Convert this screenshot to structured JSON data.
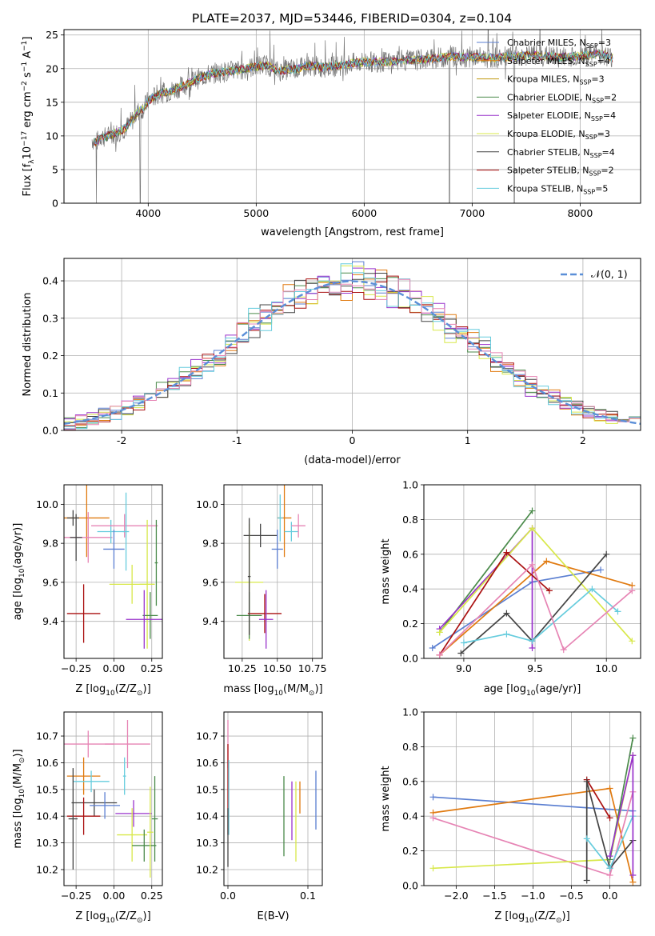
{
  "figure": {
    "title": "PLATE=2037, MJD=53446, FIBERID=0304, z=0.104"
  },
  "chart_data": [
    {
      "id": "spectrum",
      "type": "line",
      "xlabel": "wavelength [Angstrom, rest frame]",
      "ylabel_main": "Flux [f",
      "ylabel_sub1": "λ",
      "ylabel_mid": "10",
      "ylabel_sup1": "−17",
      "ylabel_mid2": " erg cm",
      "ylabel_sup2": "−2",
      "ylabel_mid3": " s",
      "ylabel_sup3": "−1",
      "ylabel_mid4": " A",
      "ylabel_sup4": "−1",
      "ylabel_end": "]",
      "xlim": [
        3220,
        8560
      ],
      "ylim": [
        0,
        25.8
      ],
      "xticks": [
        4000,
        5000,
        6000,
        7000,
        8000
      ],
      "yticks": [
        0,
        5,
        10,
        15,
        20,
        25
      ],
      "legend_position": "top-right",
      "data_range": [
        3480,
        8300
      ],
      "anchors": {
        "x": [
          3480,
          3520,
          3560,
          3600,
          3680,
          3750,
          3800,
          3860,
          3900,
          3960,
          4000,
          4100,
          4200,
          4300,
          4400,
          4500,
          4600,
          4700,
          4800,
          4900,
          5000,
          5100,
          5200,
          5300,
          5400,
          5500,
          5600,
          5700,
          5800,
          5900,
          6000,
          6200,
          6400,
          6600,
          6800,
          7000,
          7200,
          7400,
          7600,
          7800,
          8000,
          8200,
          8300
        ],
        "y": [
          9.5,
          9.0,
          10.0,
          9.8,
          10.3,
          10.8,
          11.3,
          12.5,
          13.5,
          14.2,
          15.2,
          16.3,
          16.6,
          17.3,
          18.0,
          18.8,
          19.3,
          19.5,
          19.7,
          20.0,
          20.3,
          20.6,
          19.6,
          19.9,
          20.0,
          20.5,
          20.2,
          20.3,
          20.5,
          20.8,
          21.0,
          21.0,
          21.2,
          21.4,
          21.8,
          21.7,
          21.6,
          21.8,
          22.0,
          21.7,
          21.9,
          22.2,
          21.6
        ]
      },
      "series": [
        {
          "name": "Chabrier MILES, N",
          "sub": "SSP",
          "eq": "=3",
          "color": "#5b7fd1"
        },
        {
          "name": "Salpeter MILES, N",
          "sub": "SSP",
          "eq": "=4",
          "color": "#e07a10"
        },
        {
          "name": "Kroupa MILES, N",
          "sub": "SSP",
          "eq": "=3",
          "color": "#c09a10"
        },
        {
          "name": "Chabrier ELODIE, N",
          "sub": "SSP",
          "eq": "=2",
          "color": "#4a8a4a"
        },
        {
          "name": "Salpeter ELODIE, N",
          "sub": "SSP",
          "eq": "=4",
          "color": "#9933cc"
        },
        {
          "name": "Kroupa ELODIE, N",
          "sub": "SSP",
          "eq": "=3",
          "color": "#d8e84a"
        },
        {
          "name": "Chabrier STELIB, N",
          "sub": "SSP",
          "eq": "=4",
          "color": "#444444"
        },
        {
          "name": "Salpeter STELIB, N",
          "sub": "SSP",
          "eq": "=2",
          "color": "#aa1111"
        },
        {
          "name": "Kroupa STELIB, N",
          "sub": "SSP",
          "eq": "=5",
          "color": "#66ccdd"
        }
      ],
      "observed": {
        "color": "#777777"
      },
      "drops": [
        3520,
        3925,
        6790,
        7390
      ]
    },
    {
      "id": "residuals",
      "type": "histogram",
      "xlabel": "(data-model)/error",
      "ylabel": "Normed distribution",
      "xlim": [
        -2.5,
        2.5
      ],
      "ylim": [
        0,
        0.46
      ],
      "xticks": [
        -2,
        -1,
        0,
        1,
        2
      ],
      "yticks": [
        0,
        0.1,
        0.2,
        0.3,
        0.4
      ],
      "bin_width": 0.1,
      "legend_position": "top-right",
      "reference_curve": {
        "label": "𝒩(0, 1)",
        "mean": 0,
        "sigma": 1,
        "color": "#5b8fd8"
      },
      "series_colors": [
        "#5b7fd1",
        "#e07a10",
        "#4a8a4a",
        "#9933cc",
        "#d8e84a",
        "#444444",
        "#aa1111",
        "#66ccdd",
        "#e684b4"
      ]
    },
    {
      "id": "age-vs-Z",
      "type": "errorbar",
      "xlabel_main": "Z [log",
      "xlabel_sub": "10",
      "xlabel_rest": "(Z/Z",
      "xlabel_sub2": "⊙",
      "xlabel_end": ")]",
      "ylabel_main": "age  [log",
      "ylabel_sub": "10",
      "ylabel_rest": "(age/yr)]",
      "xlim": [
        -0.33,
        0.32
      ],
      "ylim": [
        9.21,
        10.1
      ],
      "xticks": [
        -0.25,
        0.0,
        0.25
      ],
      "yticks": [
        9.4,
        9.6,
        9.8,
        10.0
      ],
      "points": [
        {
          "x": -0.18,
          "y": 9.93,
          "xerr": 0.15,
          "yerr": 0.2,
          "color": "#e07a10"
        },
        {
          "x": -0.17,
          "y": 9.83,
          "xerr": 0.16,
          "yerr": 0.13,
          "color": "#e684b4"
        },
        {
          "x": -0.27,
          "y": 9.93,
          "xerr": 0.04,
          "yerr": 0.04,
          "color": "#444444"
        },
        {
          "x": -0.25,
          "y": 9.83,
          "xerr": 0.04,
          "yerr": 0.12,
          "color": "#444444"
        },
        {
          "x": -0.2,
          "y": 9.44,
          "xerr": 0.11,
          "yerr": 0.15,
          "color": "#aa1111"
        },
        {
          "x": -0.02,
          "y": 9.86,
          "xerr": 0.09,
          "yerr": 0.06,
          "color": "#66ccdd"
        },
        {
          "x": 0.07,
          "y": 9.89,
          "xerr": 0.22,
          "yerr": 0.06,
          "color": "#e684b4"
        },
        {
          "x": 0.0,
          "y": 9.77,
          "xerr": 0.07,
          "yerr": 0.1,
          "color": "#5b7fd1"
        },
        {
          "x": 0.08,
          "y": 9.86,
          "xerr": 0.02,
          "yerr": 0.2,
          "color": "#66ccdd"
        },
        {
          "x": 0.12,
          "y": 9.59,
          "xerr": 0.15,
          "yerr": 0.1,
          "color": "#d8e84a"
        },
        {
          "x": 0.22,
          "y": 9.59,
          "xerr": 0.05,
          "yerr": 0.33,
          "color": "#d8e84a"
        },
        {
          "x": 0.24,
          "y": 9.43,
          "xerr": 0.05,
          "yerr": 0.12,
          "color": "#4a8a4a"
        },
        {
          "x": 0.2,
          "y": 9.41,
          "xerr": 0.12,
          "yerr": 0.15,
          "color": "#9933cc"
        },
        {
          "x": 0.28,
          "y": 9.7,
          "xerr": 0.01,
          "yerr": 0.22,
          "color": "#4a8a4a"
        }
      ]
    },
    {
      "id": "age-vs-mass",
      "type": "errorbar",
      "xlabel_main": "mass [log",
      "xlabel_sub": "10",
      "xlabel_rest": "(M/M",
      "xlabel_sub2": "⊙",
      "xlabel_end": ")]",
      "xlim": [
        10.12,
        10.82
      ],
      "ylim": [
        9.21,
        10.1
      ],
      "xticks": [
        10.25,
        10.5,
        10.75
      ],
      "yticks": [
        9.4,
        9.6,
        9.8,
        10.0
      ],
      "points": [
        {
          "x": 10.38,
          "y": 9.84,
          "xerr": 0.12,
          "yerr": 0.06,
          "color": "#444444"
        },
        {
          "x": 10.41,
          "y": 9.44,
          "xerr": 0.12,
          "yerr": 0.1,
          "color": "#aa1111"
        },
        {
          "x": 10.3,
          "y": 9.6,
          "xerr": 0.1,
          "yerr": 0.3,
          "color": "#d8e84a"
        },
        {
          "x": 10.3,
          "y": 9.43,
          "xerr": 0.09,
          "yerr": 0.12,
          "color": "#4a8a4a"
        },
        {
          "x": 10.42,
          "y": 9.41,
          "xerr": 0.05,
          "yerr": 0.15,
          "color": "#9933cc"
        },
        {
          "x": 10.55,
          "y": 9.93,
          "xerr": 0.05,
          "yerr": 0.2,
          "color": "#e07a10"
        },
        {
          "x": 10.5,
          "y": 9.77,
          "xerr": 0.04,
          "yerr": 0.1,
          "color": "#5b7fd1"
        },
        {
          "x": 10.6,
          "y": 9.86,
          "xerr": 0.05,
          "yerr": 0.05,
          "color": "#66ccdd"
        },
        {
          "x": 10.52,
          "y": 9.93,
          "xerr": 0.02,
          "yerr": 0.12,
          "color": "#66ccdd"
        },
        {
          "x": 10.65,
          "y": 9.89,
          "xerr": 0.05,
          "yerr": 0.06,
          "color": "#e684b4"
        },
        {
          "x": 10.3,
          "y": 9.63,
          "xerr": 0.01,
          "yerr": 0.3,
          "color": "#444444"
        }
      ]
    },
    {
      "id": "weight-vs-age",
      "type": "line",
      "xlabel_main": "age  [log",
      "xlabel_sub": "10",
      "xlabel_rest": "(age/yr)]",
      "ylabel": "mass weight",
      "xlim": [
        8.72,
        10.24
      ],
      "ylim": [
        0,
        1
      ],
      "xticks": [
        9.0,
        9.5,
        10.0
      ],
      "yticks": [
        0,
        0.2,
        0.4,
        0.6,
        0.8,
        1.0
      ],
      "series": [
        {
          "color": "#5b7fd1",
          "x": [
            8.78,
            9.48,
            9.96
          ],
          "y": [
            0.06,
            0.44,
            0.51
          ]
        },
        {
          "color": "#e07a10",
          "x": [
            8.83,
            9.58,
            10.18
          ],
          "y": [
            0.02,
            0.56,
            0.42
          ]
        },
        {
          "color": "#4a8a4a",
          "x": [
            8.83,
            9.48
          ],
          "y": [
            0.15,
            0.85
          ]
        },
        {
          "color": "#9933cc",
          "x": [
            8.83,
            9.48,
            9.48
          ],
          "y": [
            0.17,
            0.75,
            0.06
          ]
        },
        {
          "color": "#d8e84a",
          "x": [
            8.83,
            9.48,
            10.18
          ],
          "y": [
            0.15,
            0.75,
            0.1
          ]
        },
        {
          "color": "#444444",
          "x": [
            8.98,
            9.3,
            9.48,
            10.0
          ],
          "y": [
            0.03,
            0.26,
            0.1,
            0.6
          ]
        },
        {
          "color": "#aa1111",
          "x": [
            8.83,
            9.3,
            9.6
          ],
          "y": [
            0.02,
            0.61,
            0.39
          ]
        },
        {
          "color": "#66ccdd",
          "x": [
            9.0,
            9.3,
            9.48,
            9.9,
            10.08
          ],
          "y": [
            0.09,
            0.14,
            0.1,
            0.4,
            0.27
          ]
        },
        {
          "color": "#e684b4",
          "x": [
            8.83,
            9.48,
            9.7,
            10.18
          ],
          "y": [
            0.02,
            0.54,
            0.05,
            0.39
          ]
        }
      ]
    },
    {
      "id": "mass-vs-Z",
      "type": "errorbar",
      "xlabel_main": "Z [log",
      "xlabel_sub": "10",
      "xlabel_rest": "(Z/Z",
      "xlabel_sub2": "⊙",
      "xlabel_end": ")]",
      "ylabel_main": "mass [log",
      "ylabel_sub": "10",
      "ylabel_rest": "(M/M",
      "ylabel_sub2": "⊙",
      "ylabel_end": ")]",
      "xlim": [
        -0.33,
        0.32
      ],
      "ylim": [
        10.14,
        10.79
      ],
      "xticks": [
        -0.25,
        0.0,
        0.25
      ],
      "yticks": [
        10.2,
        10.3,
        10.4,
        10.5,
        10.6,
        10.7
      ],
      "points": [
        {
          "x": -0.17,
          "y": 10.67,
          "xerr": 0.17,
          "yerr": 0.05,
          "color": "#e684b4"
        },
        {
          "x": -0.2,
          "y": 10.55,
          "xerr": 0.11,
          "yerr": 0.07,
          "color": "#e07a10"
        },
        {
          "x": -0.15,
          "y": 10.53,
          "xerr": 0.12,
          "yerr": 0.04,
          "color": "#66ccdd"
        },
        {
          "x": -0.13,
          "y": 10.45,
          "xerr": 0.15,
          "yerr": 0.05,
          "color": "#444444"
        },
        {
          "x": -0.06,
          "y": 10.44,
          "xerr": 0.1,
          "yerr": 0.05,
          "color": "#5b7fd1"
        },
        {
          "x": -0.2,
          "y": 10.4,
          "xerr": 0.11,
          "yerr": 0.07,
          "color": "#aa1111"
        },
        {
          "x": -0.27,
          "y": 10.39,
          "xerr": 0.03,
          "yerr": 0.19,
          "color": "#444444"
        },
        {
          "x": 0.09,
          "y": 10.67,
          "xerr": 0.15,
          "yerr": 0.09,
          "color": "#e684b4"
        },
        {
          "x": 0.07,
          "y": 10.55,
          "xerr": 0.01,
          "yerr": 0.07,
          "color": "#66ccdd"
        },
        {
          "x": 0.13,
          "y": 10.41,
          "xerr": 0.12,
          "yerr": 0.05,
          "color": "#9933cc"
        },
        {
          "x": 0.12,
          "y": 10.33,
          "xerr": 0.1,
          "yerr": 0.1,
          "color": "#d8e84a"
        },
        {
          "x": 0.2,
          "y": 10.29,
          "xerr": 0.08,
          "yerr": 0.06,
          "color": "#4a8a4a"
        },
        {
          "x": 0.24,
          "y": 10.34,
          "xerr": 0.02,
          "yerr": 0.17,
          "color": "#d8e84a"
        },
        {
          "x": 0.27,
          "y": 10.39,
          "xerr": 0.02,
          "yerr": 0.16,
          "color": "#4a8a4a"
        }
      ]
    },
    {
      "id": "mass-vs-EBV",
      "type": "errorbar",
      "xlabel": "E(B-V)",
      "xlim": [
        -0.005,
        0.118
      ],
      "ylim": [
        10.14,
        10.79
      ],
      "xticks": [
        0.0,
        0.1
      ],
      "yticks": [
        10.2,
        10.3,
        10.4,
        10.5,
        10.6,
        10.7
      ],
      "points": [
        {
          "x": 0.0,
          "y": 10.67,
          "xerr": 0,
          "yerr": 0.09,
          "color": "#e684b4"
        },
        {
          "x": 0.0,
          "y": 10.5,
          "xerr": 0,
          "yerr": 0.17,
          "color": "#aa1111"
        },
        {
          "x": 0.001,
          "y": 10.47,
          "xerr": 0,
          "yerr": 0.14,
          "color": "#66ccdd"
        },
        {
          "x": 0.0,
          "y": 10.32,
          "xerr": 0,
          "yerr": 0.11,
          "color": "#444444"
        },
        {
          "x": 0.07,
          "y": 10.4,
          "xerr": 0,
          "yerr": 0.15,
          "color": "#4a8a4a"
        },
        {
          "x": 0.08,
          "y": 10.42,
          "xerr": 0,
          "yerr": 0.11,
          "color": "#9933cc"
        },
        {
          "x": 0.085,
          "y": 10.38,
          "xerr": 0,
          "yerr": 0.15,
          "color": "#d8e84a"
        },
        {
          "x": 0.09,
          "y": 10.47,
          "xerr": 0,
          "yerr": 0.06,
          "color": "#e07a10"
        },
        {
          "x": 0.11,
          "y": 10.46,
          "xerr": 0,
          "yerr": 0.11,
          "color": "#5b7fd1"
        }
      ]
    },
    {
      "id": "weight-vs-Z",
      "type": "line",
      "xlabel_main": "Z [log",
      "xlabel_sub": "10",
      "xlabel_rest": "(Z/Z",
      "xlabel_sub2": "⊙",
      "xlabel_end": ")]",
      "ylabel": "mass weight",
      "xlim": [
        -2.42,
        0.4
      ],
      "ylim": [
        0,
        1
      ],
      "xticks": [
        -2.0,
        -1.5,
        -1.0,
        -0.5,
        0.0
      ],
      "yticks": [
        0,
        0.2,
        0.4,
        0.6,
        0.8,
        1.0
      ],
      "series": [
        {
          "color": "#5b7fd1",
          "x": [
            -2.3,
            0.3
          ],
          "y": [
            0.51,
            0.43
          ]
        },
        {
          "color": "#e07a10",
          "x": [
            -2.3,
            0.0,
            0.3
          ],
          "y": [
            0.42,
            0.56,
            0.02
          ]
        },
        {
          "color": "#e684b4",
          "x": [
            -2.3,
            0.0,
            0.3
          ],
          "y": [
            0.39,
            0.06,
            0.54
          ]
        },
        {
          "color": "#d8e84a",
          "x": [
            -2.3,
            0.0,
            0.3
          ],
          "y": [
            0.1,
            0.15,
            0.75
          ]
        },
        {
          "color": "#aa1111",
          "x": [
            -0.3,
            0.0
          ],
          "y": [
            0.61,
            0.39
          ]
        },
        {
          "color": "#444444",
          "x": [
            -0.3,
            -0.3,
            0.0,
            0.3
          ],
          "y": [
            0.03,
            0.6,
            0.1,
            0.26
          ]
        },
        {
          "color": "#66ccdd",
          "x": [
            -0.3,
            0.0,
            0.3
          ],
          "y": [
            0.27,
            0.1,
            0.4
          ]
        },
        {
          "color": "#4a8a4a",
          "x": [
            0.0,
            0.3
          ],
          "y": [
            0.15,
            0.85
          ]
        },
        {
          "color": "#9933cc",
          "x": [
            0.0,
            0.3,
            0.3
          ],
          "y": [
            0.17,
            0.75,
            0.06
          ]
        }
      ]
    }
  ]
}
